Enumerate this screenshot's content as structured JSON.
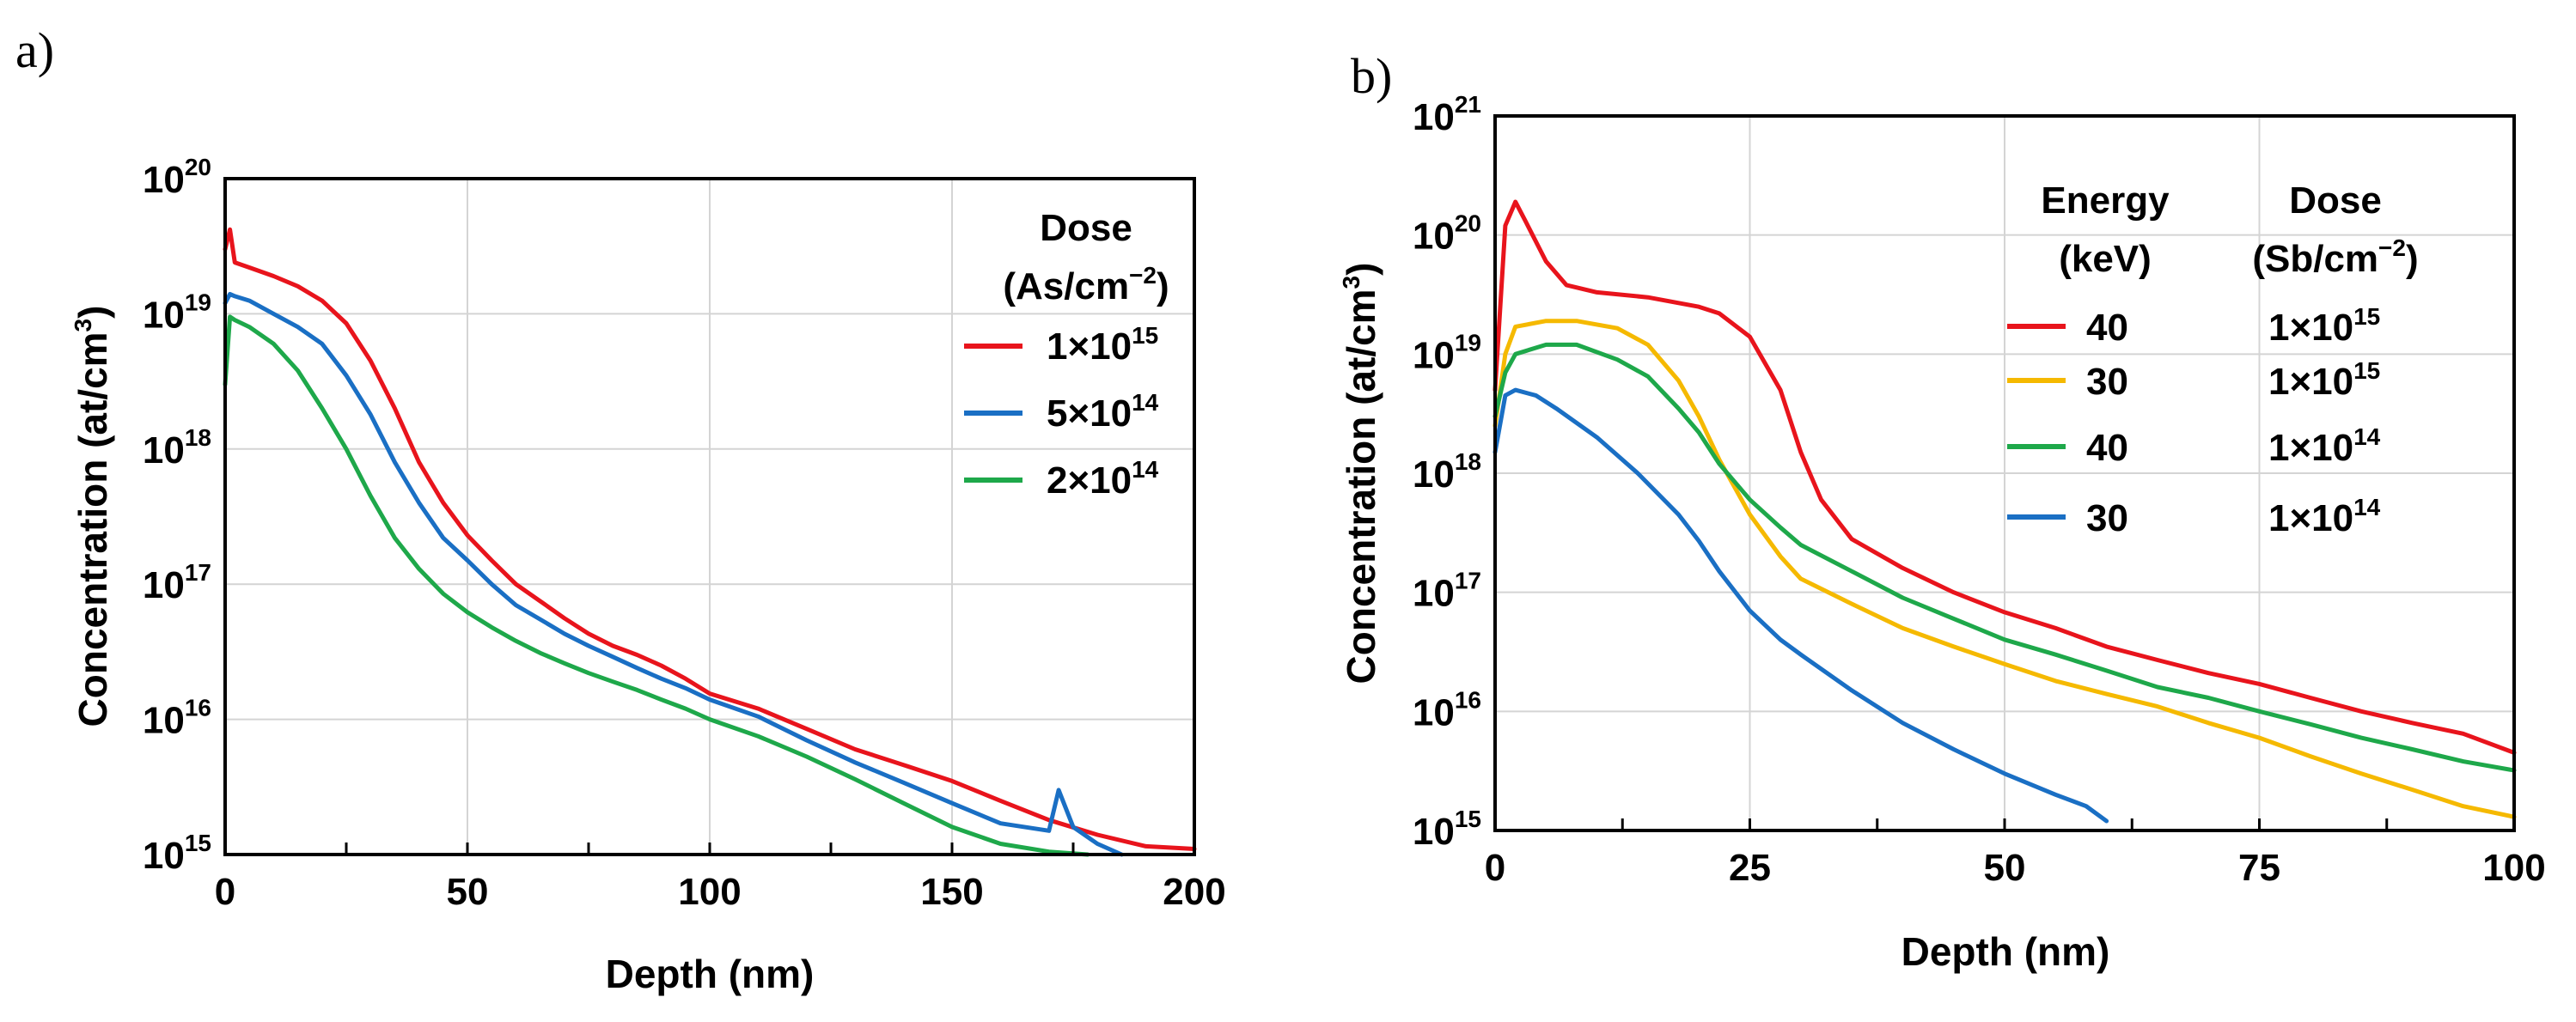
{
  "chart_data": [
    {
      "panel": "a)",
      "type": "line",
      "xlabel": "Depth (nm)",
      "ylabel": "Concentration (at/cm3)",
      "ylabel_base": "Concentration (at/cm",
      "ylabel_sup": "3",
      "ylabel_end": ")",
      "xlim": [
        0,
        200
      ],
      "ylim": [
        1000000000000000.0,
        1e+20
      ],
      "yscale": "log",
      "grid": true,
      "xticks": [
        0,
        50,
        100,
        150,
        200
      ],
      "yticks": [
        15,
        16,
        17,
        18,
        19,
        20
      ],
      "legend": {
        "placement": "top-right",
        "title_line1": "Dose",
        "title_line2": "(As/cm",
        "title_line2_sup": "−2",
        "title_line2_end": ")"
      },
      "series": [
        {
          "name": "1×10^15",
          "name_base": "1×10",
          "name_exp": "15",
          "color": "#e8141c",
          "x": [
            0,
            1,
            2,
            5,
            10,
            15,
            20,
            25,
            30,
            35,
            40,
            45,
            50,
            55,
            60,
            65,
            70,
            75,
            80,
            85,
            90,
            95,
            100,
            110,
            120,
            130,
            140,
            150,
            160,
            170,
            180,
            190,
            200
          ],
          "y": [
            3e+19,
            4.2e+19,
            2.4e+19,
            2.2e+19,
            1.9e+19,
            1.6e+19,
            1.25e+19,
            8.5e+18,
            4.5e+18,
            2e+18,
            8e+17,
            4e+17,
            2.3e+17,
            1.5e+17,
            1e+17,
            7.5e+16,
            5.6e+16,
            4.3e+16,
            3.5e+16,
            3e+16,
            2.5e+16,
            2e+16,
            1.55e+16,
            1.2e+16,
            8500000000000000.0,
            6000000000000000.0,
            4600000000000000.0,
            3500000000000000.0,
            2500000000000000.0,
            1800000000000000.0,
            1400000000000000.0,
            1150000000000000.0,
            1100000000000000.0
          ]
        },
        {
          "name": "5×10^14",
          "name_base": "5×10",
          "name_exp": "14",
          "color": "#1a6fc4",
          "x": [
            0,
            1,
            2,
            5,
            10,
            15,
            20,
            25,
            30,
            35,
            40,
            45,
            50,
            55,
            60,
            65,
            70,
            75,
            80,
            85,
            90,
            95,
            100,
            110,
            120,
            130,
            140,
            150,
            160,
            170,
            172,
            175,
            180,
            185
          ],
          "y": [
            1.2e+19,
            1.4e+19,
            1.35e+19,
            1.25e+19,
            1e+19,
            8e+18,
            6e+18,
            3.5e+18,
            1.8e+18,
            8e+17,
            4e+17,
            2.2e+17,
            1.5e+17,
            1e+17,
            7e+16,
            5.5e+16,
            4.3e+16,
            3.5e+16,
            2.9e+16,
            2.4e+16,
            2e+16,
            1.7e+16,
            1.4e+16,
            1.05e+16,
            7000000000000000.0,
            4800000000000000.0,
            3400000000000000.0,
            2400000000000000.0,
            1700000000000000.0,
            1500000000000000.0,
            3000000000000000.0,
            1600000000000000.0,
            1200000000000000.0,
            1000000000000000.0
          ]
        },
        {
          "name": "2×10^14",
          "name_base": "2×10",
          "name_exp": "14",
          "color": "#1ea84a",
          "x": [
            0,
            1,
            2,
            5,
            10,
            15,
            20,
            25,
            30,
            35,
            40,
            45,
            50,
            55,
            60,
            65,
            70,
            75,
            80,
            85,
            90,
            95,
            100,
            110,
            120,
            130,
            140,
            150,
            160,
            170,
            178
          ],
          "y": [
            3e+18,
            9.5e+18,
            9e+18,
            8e+18,
            6e+18,
            3.8e+18,
            2e+18,
            1e+18,
            4.5e+17,
            2.2e+17,
            1.3e+17,
            8.5e+16,
            6.2e+16,
            4.8e+16,
            3.8e+16,
            3.1e+16,
            2.6e+16,
            2.2e+16,
            1.9e+16,
            1.65e+16,
            1.4e+16,
            1.2e+16,
            1e+16,
            7500000000000000.0,
            5300000000000000.0,
            3600000000000000.0,
            2400000000000000.0,
            1600000000000000.0,
            1200000000000000.0,
            1050000000000000.0,
            1000000000000000.0
          ]
        }
      ]
    },
    {
      "panel": "b)",
      "type": "line",
      "xlabel": "Depth (nm)",
      "ylabel": "Concentration (at/cm3)",
      "ylabel_base": "Concentration (at/cm",
      "ylabel_sup": "3",
      "ylabel_end": ")",
      "xlim": [
        0,
        100
      ],
      "ylim": [
        1000000000000000.0,
        1e+21
      ],
      "yscale": "log",
      "grid": true,
      "xticks": [
        0,
        25,
        50,
        75,
        100
      ],
      "yticks": [
        15,
        16,
        17,
        18,
        19,
        20,
        21
      ],
      "legend": {
        "placement": "top-right",
        "col1_line1": "Energy",
        "col1_line2": "(keV)",
        "col2_line1": "Dose",
        "col2_line2": "(Sb/cm",
        "col2_line2_sup": "−2",
        "col2_line2_end": ")"
      },
      "series": [
        {
          "name": "40 1×10^15",
          "energy": "40",
          "dose_base": "1×10",
          "dose_exp": "15",
          "color": "#e8141c",
          "x": [
            0,
            1,
            2,
            3,
            5,
            7,
            10,
            15,
            20,
            22,
            25,
            28,
            30,
            32,
            35,
            40,
            45,
            50,
            55,
            60,
            65,
            70,
            75,
            80,
            85,
            90,
            95,
            100
          ],
          "y": [
            5e+18,
            1.2e+20,
            1.9e+20,
            1.3e+20,
            6e+19,
            3.8e+19,
            3.3e+19,
            3e+19,
            2.5e+19,
            2.2e+19,
            1.4e+19,
            5e+18,
            1.5e+18,
            6e+17,
            2.8e+17,
            1.6e+17,
            1e+17,
            6.8e+16,
            5e+16,
            3.5e+16,
            2.7e+16,
            2.1e+16,
            1.7e+16,
            1.3e+16,
            1e+16,
            8000000000000000.0,
            6500000000000000.0,
            4500000000000000.0
          ]
        },
        {
          "name": "30 1×10^15",
          "energy": "30",
          "dose_base": "1×10",
          "dose_exp": "15",
          "color": "#f5b900",
          "x": [
            0,
            1,
            2,
            5,
            8,
            12,
            15,
            18,
            20,
            22,
            25,
            28,
            30,
            35,
            40,
            45,
            50,
            55,
            60,
            65,
            70,
            75,
            80,
            85,
            90,
            95,
            100
          ],
          "y": [
            2.5e+18,
            1e+19,
            1.7e+19,
            1.9e+19,
            1.9e+19,
            1.65e+19,
            1.2e+19,
            6e+18,
            3e+18,
            1.3e+18,
            4.5e+17,
            2e+17,
            1.3e+17,
            8e+16,
            5e+16,
            3.5e+16,
            2.5e+16,
            1.8e+16,
            1.4e+16,
            1.1e+16,
            8000000000000000.0,
            6000000000000000.0,
            4200000000000000.0,
            3000000000000000.0,
            2200000000000000.0,
            1600000000000000.0,
            1300000000000000.0
          ]
        },
        {
          "name": "40 1×10^14",
          "energy": "40",
          "dose_base": "1×10",
          "dose_exp": "14",
          "color": "#1ea84a",
          "x": [
            0,
            1,
            2,
            5,
            8,
            12,
            15,
            18,
            20,
            22,
            25,
            28,
            30,
            35,
            40,
            45,
            50,
            55,
            60,
            65,
            70,
            75,
            80,
            85,
            90,
            95,
            100
          ],
          "y": [
            3e+18,
            7e+18,
            1e+19,
            1.2e+19,
            1.2e+19,
            9e+18,
            6.5e+18,
            3.5e+18,
            2.2e+18,
            1.2e+18,
            6e+17,
            3.5e+17,
            2.5e+17,
            1.5e+17,
            9e+16,
            6e+16,
            4e+16,
            3e+16,
            2.2e+16,
            1.6e+16,
            1.3e+16,
            1e+16,
            7800000000000000.0,
            6000000000000000.0,
            4800000000000000.0,
            3800000000000000.0,
            3200000000000000.0
          ]
        },
        {
          "name": "30 1×10^14",
          "energy": "30",
          "dose_base": "1×10",
          "dose_exp": "14",
          "color": "#1a6fc4",
          "x": [
            0,
            1,
            2,
            4,
            6,
            10,
            14,
            18,
            20,
            22,
            25,
            28,
            30,
            35,
            40,
            45,
            50,
            55,
            58,
            60
          ],
          "y": [
            1.5e+18,
            4.5e+18,
            5e+18,
            4.5e+18,
            3.5e+18,
            2e+18,
            1e+18,
            4.5e+17,
            2.7e+17,
            1.5e+17,
            7e+16,
            4e+16,
            3e+16,
            1.5e+16,
            8000000000000000.0,
            4800000000000000.0,
            3000000000000000.0,
            2000000000000000.0,
            1600000000000000.0,
            1200000000000000.0
          ]
        }
      ]
    }
  ]
}
